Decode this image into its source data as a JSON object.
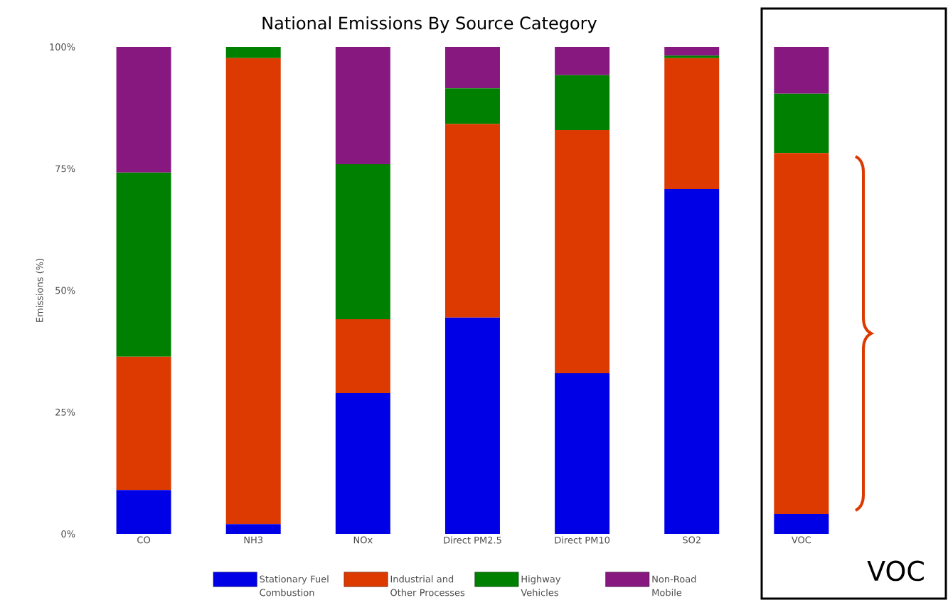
{
  "chart_data": {
    "type": "bar",
    "stacked": true,
    "title": "National Emissions By Source Category",
    "ylabel": "Emissions (%)",
    "categories": [
      "CO",
      "NH3",
      "NOx",
      "Direct PM2.5",
      "Direct PM10",
      "SO2",
      "VOC"
    ],
    "series": [
      {
        "name": "Stationary Fuel Combustion",
        "color": "#0000e6",
        "values": [
          9.0,
          2.0,
          28.9,
          44.4,
          33.0,
          70.8,
          4.1
        ]
      },
      {
        "name": "Industrial and Other Processes",
        "color": "#dc3a00",
        "values": [
          27.4,
          95.7,
          15.2,
          39.8,
          49.9,
          26.9,
          74.1
        ]
      },
      {
        "name": "Highway Vehicles",
        "color": "#008000",
        "values": [
          37.8,
          2.3,
          31.8,
          7.3,
          11.3,
          0.5,
          12.2
        ]
      },
      {
        "name": "Non-Road Mobile",
        "color": "#86187f",
        "values": [
          25.8,
          0,
          24.1,
          8.5,
          5.8,
          1.8,
          9.6
        ]
      }
    ],
    "ylim": [
      0,
      100
    ],
    "yticks": [
      {
        "value": 0,
        "label": "0%"
      },
      {
        "value": 25,
        "label": "25%"
      },
      {
        "value": 50,
        "label": "50%"
      },
      {
        "value": 75,
        "label": "75%"
      },
      {
        "value": 100,
        "label": "100%"
      }
    ],
    "grid": false,
    "legend": "bottom",
    "annotations": [
      "VOC"
    ]
  }
}
